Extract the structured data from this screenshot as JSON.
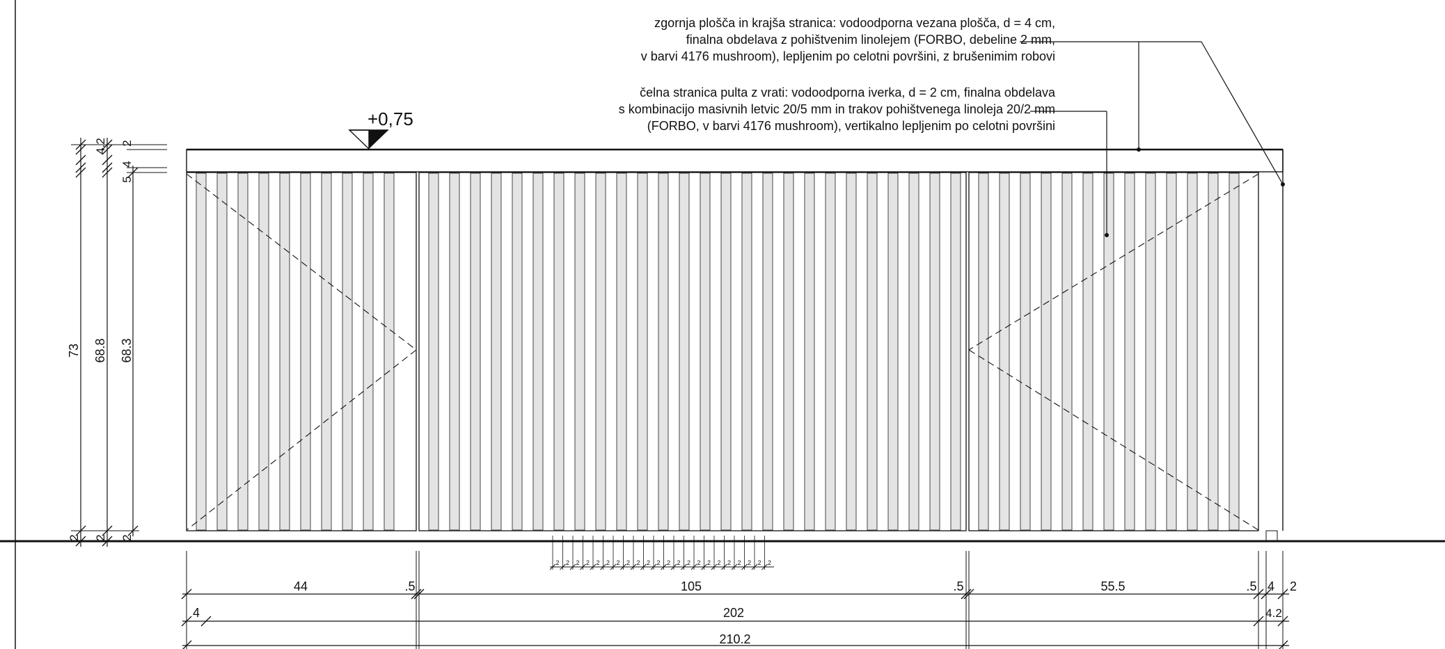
{
  "level_mark": "+0,75",
  "notes": {
    "top": [
      "zgornja plošča in krajša stranica: vodoodporna vezana plošča, d = 4 cm,",
      "finalna obdelava z pohištvenim linolejem (FORBO, debeline 2 mm,",
      "v barvi 4176 mushroom), lepljenim po celotni površini, z brušenimim robovi"
    ],
    "front": [
      "čelna stranica pulta z vrati: vodoodporna iverka, d = 2 cm, finalna obdelava",
      "s kombinacijo masivnih letvic 20/5 mm in trakov pohištvenega linoleja 20/2 mm",
      "(FORBO, v barvi 4176 mushroom), vertikalno lepljenim po celotni površini"
    ]
  },
  "vertical_dims": {
    "total": "73",
    "body": "68.8",
    "door": "68.3",
    "top_board": "4.2",
    "top_inner": "4",
    "top_skin": "2",
    "gap": "5",
    "bottom_left": "2",
    "bottom_mid": "2",
    "bottom_right": "2"
  },
  "horizontal_dims": {
    "row1": [
      "44",
      ".5",
      "105",
      ".5",
      "55.5",
      ".5",
      "4",
      "2"
    ],
    "row2": [
      "4",
      "202",
      "4.2"
    ],
    "row3": [
      "210.2"
    ],
    "strip_label": "2"
  }
}
